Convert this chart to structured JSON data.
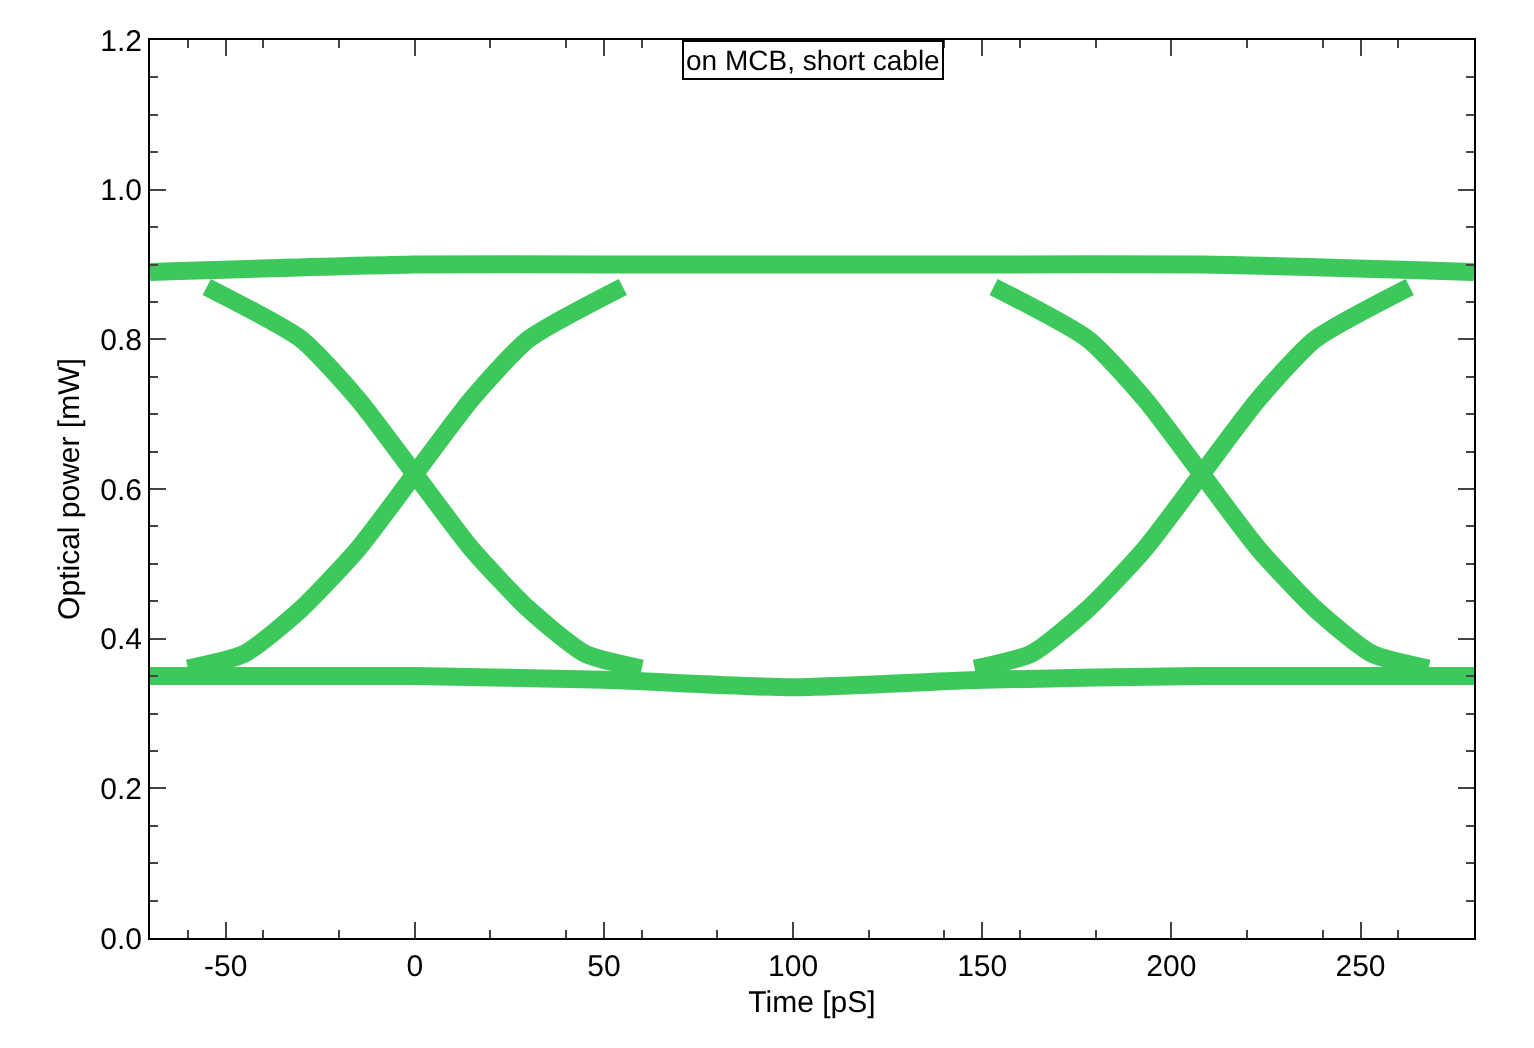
{
  "chart_data": {
    "type": "line",
    "title": "on MCB, short cable",
    "xlabel": "Time [pS]",
    "ylabel": "Optical power [mW]",
    "xlim": [
      -70,
      280
    ],
    "xticks": [
      -50,
      0,
      50,
      100,
      150,
      200,
      250
    ],
    "ylim": [
      0,
      1.2
    ],
    "yticks": [
      {
        "value": 0,
        "label": "0.0"
      },
      {
        "value": 0.2,
        "label": "0.2"
      },
      {
        "value": 0.4,
        "label": "0.4"
      },
      {
        "value": 0.6,
        "label": "0.6"
      },
      {
        "value": 0.8,
        "label": "0.8"
      },
      {
        "value": 1.0,
        "label": "1.0"
      },
      {
        "value": 1.2,
        "label": "1.2"
      }
    ],
    "marker": "none",
    "line_style": "solid",
    "series": [
      {
        "color": "#3cc85a",
        "x": [
          -70,
          0,
          50,
          100,
          150,
          208,
          280
        ],
        "values": [
          0.89,
          0.9,
          0.9,
          0.9,
          0.9,
          0.9,
          0.89
        ]
      },
      {
        "color": "#3cc85a",
        "x": [
          -70,
          0,
          50,
          100,
          150,
          208,
          280
        ],
        "values": [
          0.35,
          0.35,
          0.345,
          0.335,
          0.345,
          0.35,
          0.35
        ]
      },
      {
        "color": "#3cc85a",
        "x": [
          -55,
          -30,
          -15,
          0,
          15,
          30,
          45,
          60
        ],
        "values": [
          0.87,
          0.8,
          0.72,
          0.62,
          0.52,
          0.44,
          0.38,
          0.36
        ]
      },
      {
        "color": "#3cc85a",
        "x": [
          -60,
          -45,
          -30,
          -15,
          0,
          15,
          30,
          55
        ],
        "values": [
          0.36,
          0.38,
          0.44,
          0.52,
          0.62,
          0.72,
          0.8,
          0.87
        ]
      },
      {
        "color": "#3cc85a",
        "x": [
          153,
          178,
          193,
          208,
          223,
          238,
          253,
          268
        ],
        "values": [
          0.87,
          0.8,
          0.72,
          0.62,
          0.52,
          0.44,
          0.38,
          0.36
        ]
      },
      {
        "color": "#3cc85a",
        "x": [
          148,
          163,
          178,
          193,
          208,
          223,
          238,
          263
        ],
        "values": [
          0.36,
          0.38,
          0.44,
          0.52,
          0.62,
          0.72,
          0.8,
          0.87
        ]
      }
    ]
  }
}
